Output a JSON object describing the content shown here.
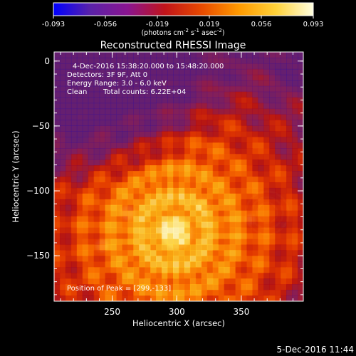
{
  "title": "Reconstructed RHESSI Image",
  "date_footer": "5-Dec-2016 11:44",
  "colorbar": {
    "ticks": [
      "-0.093",
      "-0.056",
      "-0.019",
      "0.019",
      "0.056",
      "0.093"
    ],
    "unit_prefix": "(photons cm",
    "unit_sup1": "-2",
    "unit_mid": " s",
    "unit_sup2": "-1",
    "unit_mid2": " asec",
    "unit_sup3": "-2",
    "unit_suffix": ")",
    "colors": [
      "#0000ff",
      "#5a22a8",
      "#8a1590",
      "#c0141a",
      "#e84a00",
      "#ff9a00",
      "#ffd23a",
      "#ffffe0"
    ]
  },
  "info": {
    "time": "4-Dec-2016 15:38:20.000 to 15:48:20.000",
    "detectors": "Detectors: 3F 9F, Att 0",
    "energy": "Energy Range: 3.0 - 6.0 keV",
    "method": "Clean",
    "counts": "Total counts: 6.22E+04",
    "peak": "Position of Peak = [299,-133]"
  },
  "chart_data": {
    "type": "heatmap",
    "title": "Reconstructed RHESSI Image",
    "xlabel": "Heliocentric X (arcsec)",
    "ylabel": "Heliocentric Y (arcsec)",
    "xlim": [
      205,
      398
    ],
    "ylim": [
      -185,
      7
    ],
    "xticks": [
      250,
      300,
      350
    ],
    "yticks": [
      0,
      -50,
      -100,
      -150
    ],
    "xtick_labels": [
      "250",
      "300",
      "350"
    ],
    "ytick_labels": [
      "0",
      "−50",
      "−100",
      "−150"
    ],
    "value_range": [
      -0.093,
      0.093
    ],
    "peak": [
      299,
      -133
    ],
    "grid": false
  }
}
